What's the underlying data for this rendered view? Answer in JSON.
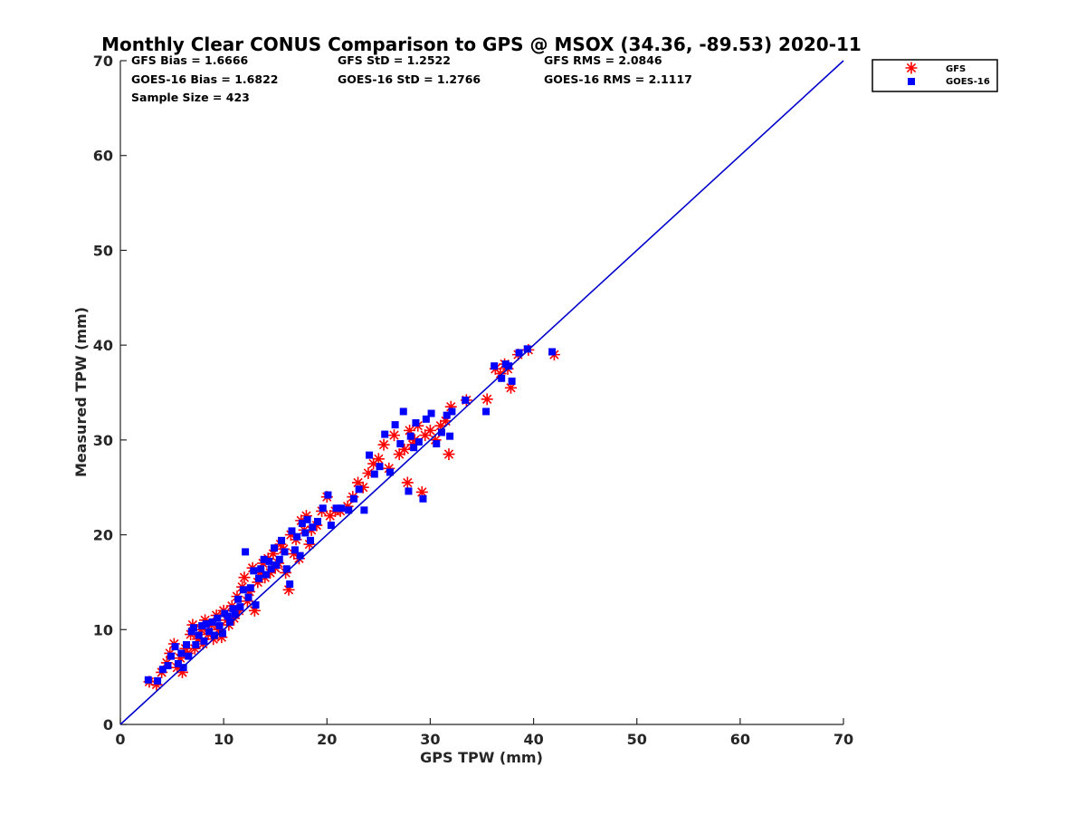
{
  "title": "Monthly Clear CONUS Comparison to GPS @ MSOX (34.36, -89.53) 2020-11",
  "stats": {
    "gfs_bias": "GFS Bias = 1.6666",
    "goes_bias": "GOES-16 Bias = 1.6822",
    "sample_size": "Sample Size = 423",
    "gfs_std": "GFS StD = 1.2522",
    "goes_std": "GOES-16 StD = 1.2766",
    "gfs_rms": "GFS RMS = 2.0846",
    "goes_rms": "GOES-16 RMS = 2.1117"
  },
  "colors": {
    "gfs": "#ff0000",
    "goes": "#0000ff",
    "reference_line": "#0000cc",
    "axes": "#262626"
  },
  "chart_data": {
    "type": "scatter",
    "title": "Monthly Clear CONUS Comparison to GPS @ MSOX (34.36, -89.53) 2020-11",
    "xlabel": "GPS TPW (mm)",
    "ylabel": "Measured TPW (mm)",
    "xlim": [
      0,
      70
    ],
    "ylim": [
      0,
      70
    ],
    "xticks": [
      "0",
      "10",
      "20",
      "30",
      "40",
      "50",
      "60",
      "70"
    ],
    "yticks": [
      "0",
      "10",
      "20",
      "30",
      "40",
      "50",
      "60",
      "70"
    ],
    "grid": false,
    "legend_position": "top-right",
    "reference_line": {
      "x": [
        0,
        70
      ],
      "y": [
        0,
        70
      ]
    },
    "series": [
      {
        "name": "GFS",
        "marker": "asterisk",
        "color": "#ff0000",
        "points": [
          [
            2.8,
            4.5
          ],
          [
            3.5,
            4.2
          ],
          [
            4.0,
            5.5
          ],
          [
            4.5,
            6.5
          ],
          [
            4.8,
            7.5
          ],
          [
            5.2,
            8.5
          ],
          [
            5.5,
            6.0
          ],
          [
            5.8,
            7.0
          ],
          [
            6.0,
            5.5
          ],
          [
            6.3,
            8.0
          ],
          [
            6.5,
            7.5
          ],
          [
            6.8,
            9.5
          ],
          [
            7.0,
            10.5
          ],
          [
            7.2,
            8.0
          ],
          [
            7.5,
            9.0
          ],
          [
            7.8,
            10.0
          ],
          [
            8.0,
            8.5
          ],
          [
            8.2,
            11.0
          ],
          [
            8.5,
            9.5
          ],
          [
            8.8,
            10.5
          ],
          [
            9.0,
            9.0
          ],
          [
            9.3,
            11.5
          ],
          [
            9.5,
            10.0
          ],
          [
            9.8,
            9.2
          ],
          [
            10.0,
            12.0
          ],
          [
            10.3,
            11.0
          ],
          [
            10.5,
            10.5
          ],
          [
            10.8,
            12.5
          ],
          [
            11.0,
            11.2
          ],
          [
            11.3,
            13.5
          ],
          [
            11.5,
            12.0
          ],
          [
            11.8,
            14.5
          ],
          [
            12.0,
            15.5
          ],
          [
            12.3,
            13.0
          ],
          [
            12.5,
            14.0
          ],
          [
            12.8,
            16.5
          ],
          [
            13.0,
            12.0
          ],
          [
            13.3,
            15.0
          ],
          [
            13.5,
            16.0
          ],
          [
            13.8,
            17.0
          ],
          [
            14.0,
            15.5
          ],
          [
            14.3,
            17.5
          ],
          [
            14.5,
            16.0
          ],
          [
            14.8,
            18.0
          ],
          [
            15.0,
            16.5
          ],
          [
            15.3,
            17.0
          ],
          [
            15.5,
            19.0
          ],
          [
            15.8,
            18.5
          ],
          [
            16.0,
            16.0
          ],
          [
            16.3,
            14.2
          ],
          [
            16.5,
            20.0
          ],
          [
            16.8,
            18.0
          ],
          [
            17.0,
            19.5
          ],
          [
            17.3,
            17.5
          ],
          [
            17.5,
            21.5
          ],
          [
            17.8,
            20.5
          ],
          [
            18.0,
            22.0
          ],
          [
            18.3,
            19.0
          ],
          [
            18.5,
            20.5
          ],
          [
            19.0,
            21.0
          ],
          [
            19.5,
            22.5
          ],
          [
            20.0,
            24.0
          ],
          [
            20.3,
            22.0
          ],
          [
            20.8,
            22.5
          ],
          [
            21.3,
            22.5
          ],
          [
            22.0,
            23.0
          ],
          [
            22.5,
            24.0
          ],
          [
            23.0,
            25.5
          ],
          [
            23.5,
            25.0
          ],
          [
            24.0,
            26.5
          ],
          [
            24.5,
            27.5
          ],
          [
            25.0,
            28.0
          ],
          [
            25.5,
            29.5
          ],
          [
            26.0,
            27.0
          ],
          [
            26.5,
            30.5
          ],
          [
            27.0,
            28.5
          ],
          [
            27.5,
            29.0
          ],
          [
            27.8,
            25.5
          ],
          [
            28.0,
            31.0
          ],
          [
            28.3,
            29.5
          ],
          [
            28.5,
            30.0
          ],
          [
            28.8,
            31.5
          ],
          [
            29.2,
            24.5
          ],
          [
            29.5,
            30.5
          ],
          [
            30.0,
            31.0
          ],
          [
            30.5,
            30.0
          ],
          [
            31.0,
            31.5
          ],
          [
            31.5,
            32.0
          ],
          [
            31.8,
            28.5
          ],
          [
            32.0,
            33.5
          ],
          [
            33.5,
            34.2
          ],
          [
            35.5,
            34.3
          ],
          [
            36.3,
            37.5
          ],
          [
            36.8,
            37.0
          ],
          [
            37.2,
            38.0
          ],
          [
            37.5,
            37.5
          ],
          [
            37.8,
            35.5
          ],
          [
            38.5,
            39.0
          ],
          [
            39.5,
            39.5
          ],
          [
            42.0,
            39.0
          ]
        ]
      },
      {
        "name": "GOES-16",
        "marker": "square",
        "color": "#0000ff",
        "points": [
          [
            2.7,
            4.7
          ],
          [
            3.6,
            4.6
          ],
          [
            4.1,
            5.8
          ],
          [
            4.6,
            6.2
          ],
          [
            4.9,
            7.2
          ],
          [
            5.3,
            8.2
          ],
          [
            5.6,
            6.4
          ],
          [
            5.9,
            7.5
          ],
          [
            6.1,
            6.0
          ],
          [
            6.4,
            8.4
          ],
          [
            6.6,
            7.2
          ],
          [
            6.9,
            9.8
          ],
          [
            7.1,
            10.2
          ],
          [
            7.3,
            8.4
          ],
          [
            7.6,
            9.4
          ],
          [
            7.9,
            10.4
          ],
          [
            8.1,
            8.8
          ],
          [
            8.3,
            10.6
          ],
          [
            8.6,
            9.8
          ],
          [
            8.9,
            10.8
          ],
          [
            9.1,
            9.4
          ],
          [
            9.4,
            11.2
          ],
          [
            9.6,
            10.4
          ],
          [
            9.9,
            9.6
          ],
          [
            10.1,
            11.7
          ],
          [
            10.4,
            11.4
          ],
          [
            10.6,
            10.8
          ],
          [
            10.9,
            12.2
          ],
          [
            11.1,
            11.6
          ],
          [
            11.4,
            13.2
          ],
          [
            11.6,
            12.4
          ],
          [
            11.9,
            14.2
          ],
          [
            12.1,
            18.2
          ],
          [
            12.4,
            13.4
          ],
          [
            12.6,
            14.4
          ],
          [
            12.9,
            16.2
          ],
          [
            13.1,
            12.6
          ],
          [
            13.4,
            15.4
          ],
          [
            13.6,
            16.4
          ],
          [
            13.9,
            17.4
          ],
          [
            14.1,
            15.8
          ],
          [
            14.4,
            17.2
          ],
          [
            14.6,
            16.4
          ],
          [
            14.9,
            18.6
          ],
          [
            15.1,
            16.8
          ],
          [
            15.4,
            17.4
          ],
          [
            15.6,
            19.4
          ],
          [
            15.9,
            18.2
          ],
          [
            16.1,
            16.4
          ],
          [
            16.4,
            14.8
          ],
          [
            16.6,
            20.4
          ],
          [
            16.9,
            18.4
          ],
          [
            17.1,
            19.8
          ],
          [
            17.4,
            17.8
          ],
          [
            17.6,
            21.2
          ],
          [
            17.9,
            20.2
          ],
          [
            18.1,
            21.6
          ],
          [
            18.4,
            19.4
          ],
          [
            18.6,
            20.8
          ],
          [
            19.1,
            21.4
          ],
          [
            19.6,
            22.8
          ],
          [
            20.1,
            24.2
          ],
          [
            20.4,
            21.0
          ],
          [
            20.9,
            22.8
          ],
          [
            21.4,
            22.8
          ],
          [
            22.1,
            22.6
          ],
          [
            22.6,
            23.8
          ],
          [
            23.1,
            24.8
          ],
          [
            23.6,
            22.6
          ],
          [
            24.1,
            28.4
          ],
          [
            24.6,
            26.4
          ],
          [
            25.1,
            27.2
          ],
          [
            25.6,
            30.6
          ],
          [
            26.1,
            26.6
          ],
          [
            26.6,
            31.6
          ],
          [
            27.1,
            29.6
          ],
          [
            27.4,
            33.0
          ],
          [
            27.9,
            24.6
          ],
          [
            28.1,
            30.4
          ],
          [
            28.4,
            29.2
          ],
          [
            28.6,
            31.8
          ],
          [
            28.9,
            29.8
          ],
          [
            29.3,
            23.8
          ],
          [
            29.6,
            32.2
          ],
          [
            30.1,
            32.8
          ],
          [
            30.6,
            29.6
          ],
          [
            31.1,
            30.8
          ],
          [
            31.6,
            32.6
          ],
          [
            31.9,
            30.4
          ],
          [
            32.1,
            33.0
          ],
          [
            33.4,
            34.2
          ],
          [
            35.4,
            33.0
          ],
          [
            36.2,
            37.8
          ],
          [
            36.9,
            36.5
          ],
          [
            37.3,
            38.0
          ],
          [
            37.6,
            37.8
          ],
          [
            37.9,
            36.2
          ],
          [
            38.6,
            39.2
          ],
          [
            39.4,
            39.6
          ],
          [
            41.8,
            39.3
          ]
        ]
      }
    ]
  }
}
